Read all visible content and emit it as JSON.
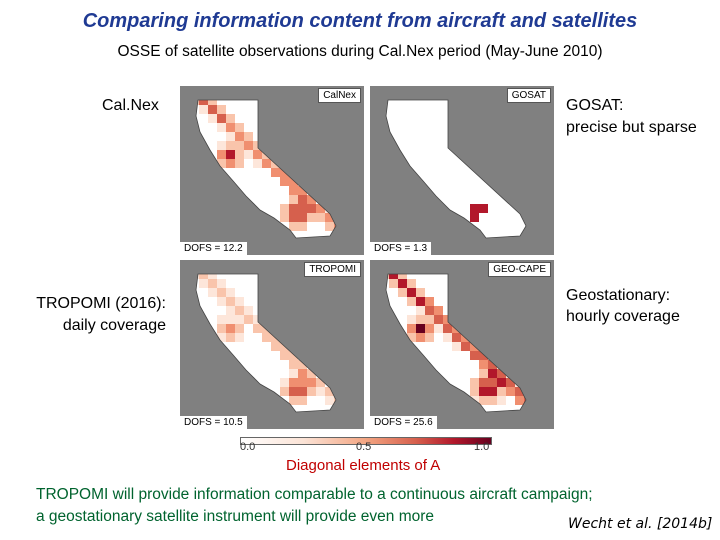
{
  "title": "Comparing information content from aircraft and satellites",
  "subtitle": "OSSE of satellite observations during Cal.Nex period (May-June 2010)",
  "labels": {
    "calnex": "Cal.Nex",
    "gosat_line1": "GOSAT:",
    "gosat_line2": "precise but sparse",
    "tropomi_line1": "TROPOMI (2016):",
    "tropomi_line2": "daily coverage",
    "geo_line1": "Geostationary:",
    "geo_line2": "hourly coverage"
  },
  "panels": {
    "calnex": {
      "name": "CalNex",
      "dofs": "DOFS = 12.2"
    },
    "gosat": {
      "name": "GOSAT",
      "dofs": "DOFS = 1.3"
    },
    "tropomi": {
      "name": "TROPOMI",
      "dofs": "DOFS = 10.5"
    },
    "geocape": {
      "name": "GEO-CAPE",
      "dofs": "DOFS = 25.6"
    }
  },
  "colorbar": {
    "ticks": [
      "0.0",
      "0.5",
      "1.0"
    ],
    "caption": "Diagonal elements of A"
  },
  "conclusion": {
    "line1": "TROPOMI will provide information comparable to a continuous aircraft campaign;",
    "line2": "a geostationary satellite instrument will provide even more"
  },
  "reference": "Wecht et al. [2014b]",
  "colors": {
    "title": "#1f3a93",
    "conclusion": "#00632e",
    "caption": "#c00000"
  }
}
